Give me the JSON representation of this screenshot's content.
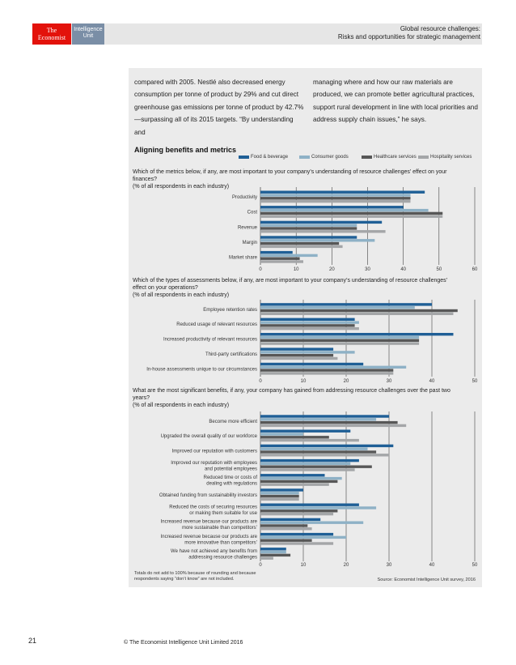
{
  "header": {
    "logo_top": "The",
    "logo_bottom": "Economist",
    "unit_top": "Intelligence",
    "unit_bottom": "Unit",
    "title_line1": "Global resource challenges:",
    "title_line2": "Risks and opportunities for strategic management"
  },
  "intro": {
    "left": "compared with 2005. Nestlé also decreased energy consumption per tonne of product by 29% and cut direct greenhouse gas emissions per tonne of product by 42.7%—surpassing all of its 2015 targets. “By understanding and",
    "right": "managing where and how our raw materials are produced, we can promote better agricultural practices, support rural development in line with local priorities and address supply chain issues,” he says."
  },
  "chart_data": {
    "type": "bar",
    "orientation": "horizontal",
    "title": "Aligning benefits and metrics",
    "legend": [
      {
        "name": "Food & beverage",
        "color": "#1f5f96"
      },
      {
        "name": "Consumer goods",
        "color": "#8eb1c6"
      },
      {
        "name": "Healthcare services",
        "color": "#575757"
      },
      {
        "name": "Hospitality services",
        "color": "#a4a6a8"
      }
    ],
    "panels": [
      {
        "question": "Which of the metrics below, if any, are most important to your company’s understanding of resource challenges’ effect on your finances?",
        "unit_note": "(% of all respondents in each industry)",
        "xlim": [
          0,
          60
        ],
        "ticks": [
          "0",
          "10",
          "20",
          "30",
          "40",
          "50",
          "60"
        ],
        "categories": [
          "Productivity",
          "Cost",
          "Revenue",
          "Margin",
          "Market share"
        ],
        "series": [
          {
            "name": "Food & beverage",
            "values": [
              46,
              40,
              34,
              27,
              9
            ]
          },
          {
            "name": "Consumer goods",
            "values": [
              42,
              47,
              27,
              32,
              16
            ]
          },
          {
            "name": "Healthcare services",
            "values": [
              42,
              51,
              27,
              22,
              11
            ]
          },
          {
            "name": "Hospitality services",
            "values": [
              42,
              51,
              35,
              23,
              12
            ]
          }
        ]
      },
      {
        "question": "Which of the types of assessments below, if any, are most important to your company’s understanding of resource challenges’ effect on your operations?",
        "unit_note": "(% of all respondents in each industry)",
        "xlim": [
          0,
          50
        ],
        "ticks": [
          "0",
          "10",
          "20",
          "30",
          "40",
          "50"
        ],
        "categories": [
          "Employee retention rates",
          "Reduced usage of relevant resources",
          "Increased productivity of relevant resources",
          "Third-party certifications",
          "In-house assessments unique to our circumstances"
        ],
        "series": [
          {
            "name": "Food & beverage",
            "values": [
              40,
              22,
              45,
              17,
              24
            ]
          },
          {
            "name": "Consumer goods",
            "values": [
              36,
              23,
              37,
              22,
              34
            ]
          },
          {
            "name": "Healthcare services",
            "values": [
              46,
              22,
              37,
              17,
              31
            ]
          },
          {
            "name": "Hospitality services",
            "values": [
              45,
              23,
              37,
              18,
              31
            ]
          }
        ]
      },
      {
        "question": "What are the most significant benefits, if any, your company has gained from addressing resource challenges over the past two years?",
        "unit_note": "(% of all respondents in each industry)",
        "xlim": [
          0,
          50
        ],
        "ticks": [
          "0",
          "10",
          "20",
          "30",
          "40",
          "50"
        ],
        "categories": [
          "Become more efficient",
          "Upgraded the overall quality of our workforce",
          "Improved our reputation with customers",
          "Improved our reputation with employees and potential employees",
          "Reduced time or costs of dealing with regulations",
          "Obtained funding from sustainability investors",
          "Reduced the costs of securing resources or making them suitable for use",
          "Increased revenue because our products are more sustainable than competitors’",
          "Increased revenue because our products are more innovative than competitors’",
          "We have not achieved any benefits from addressing resource challenges"
        ],
        "series": [
          {
            "name": "Food & beverage",
            "values": [
              30,
              21,
              31,
              23,
              15,
              10,
              23,
              14,
              17,
              6
            ]
          },
          {
            "name": "Consumer goods",
            "values": [
              27,
              10,
              25,
              21,
              19,
              9,
              27,
              24,
              20,
              6
            ]
          },
          {
            "name": "Healthcare services",
            "values": [
              32,
              16,
              27,
              26,
              18,
              9,
              18,
              11,
              12,
              7
            ]
          },
          {
            "name": "Hospitality services",
            "values": [
              34,
              23,
              30,
              22,
              16,
              9,
              17,
              12,
              17,
              3
            ]
          }
        ]
      }
    ],
    "note": "Totals do not add to 100% because of rounding and because respondents saying “don’t know” are not included.",
    "source": "Source: Economist Intelligence Unit survey, 2016"
  },
  "footer": {
    "page_number": "21",
    "copyright": "© The Economist Intelligence Unit Limited 2016"
  }
}
